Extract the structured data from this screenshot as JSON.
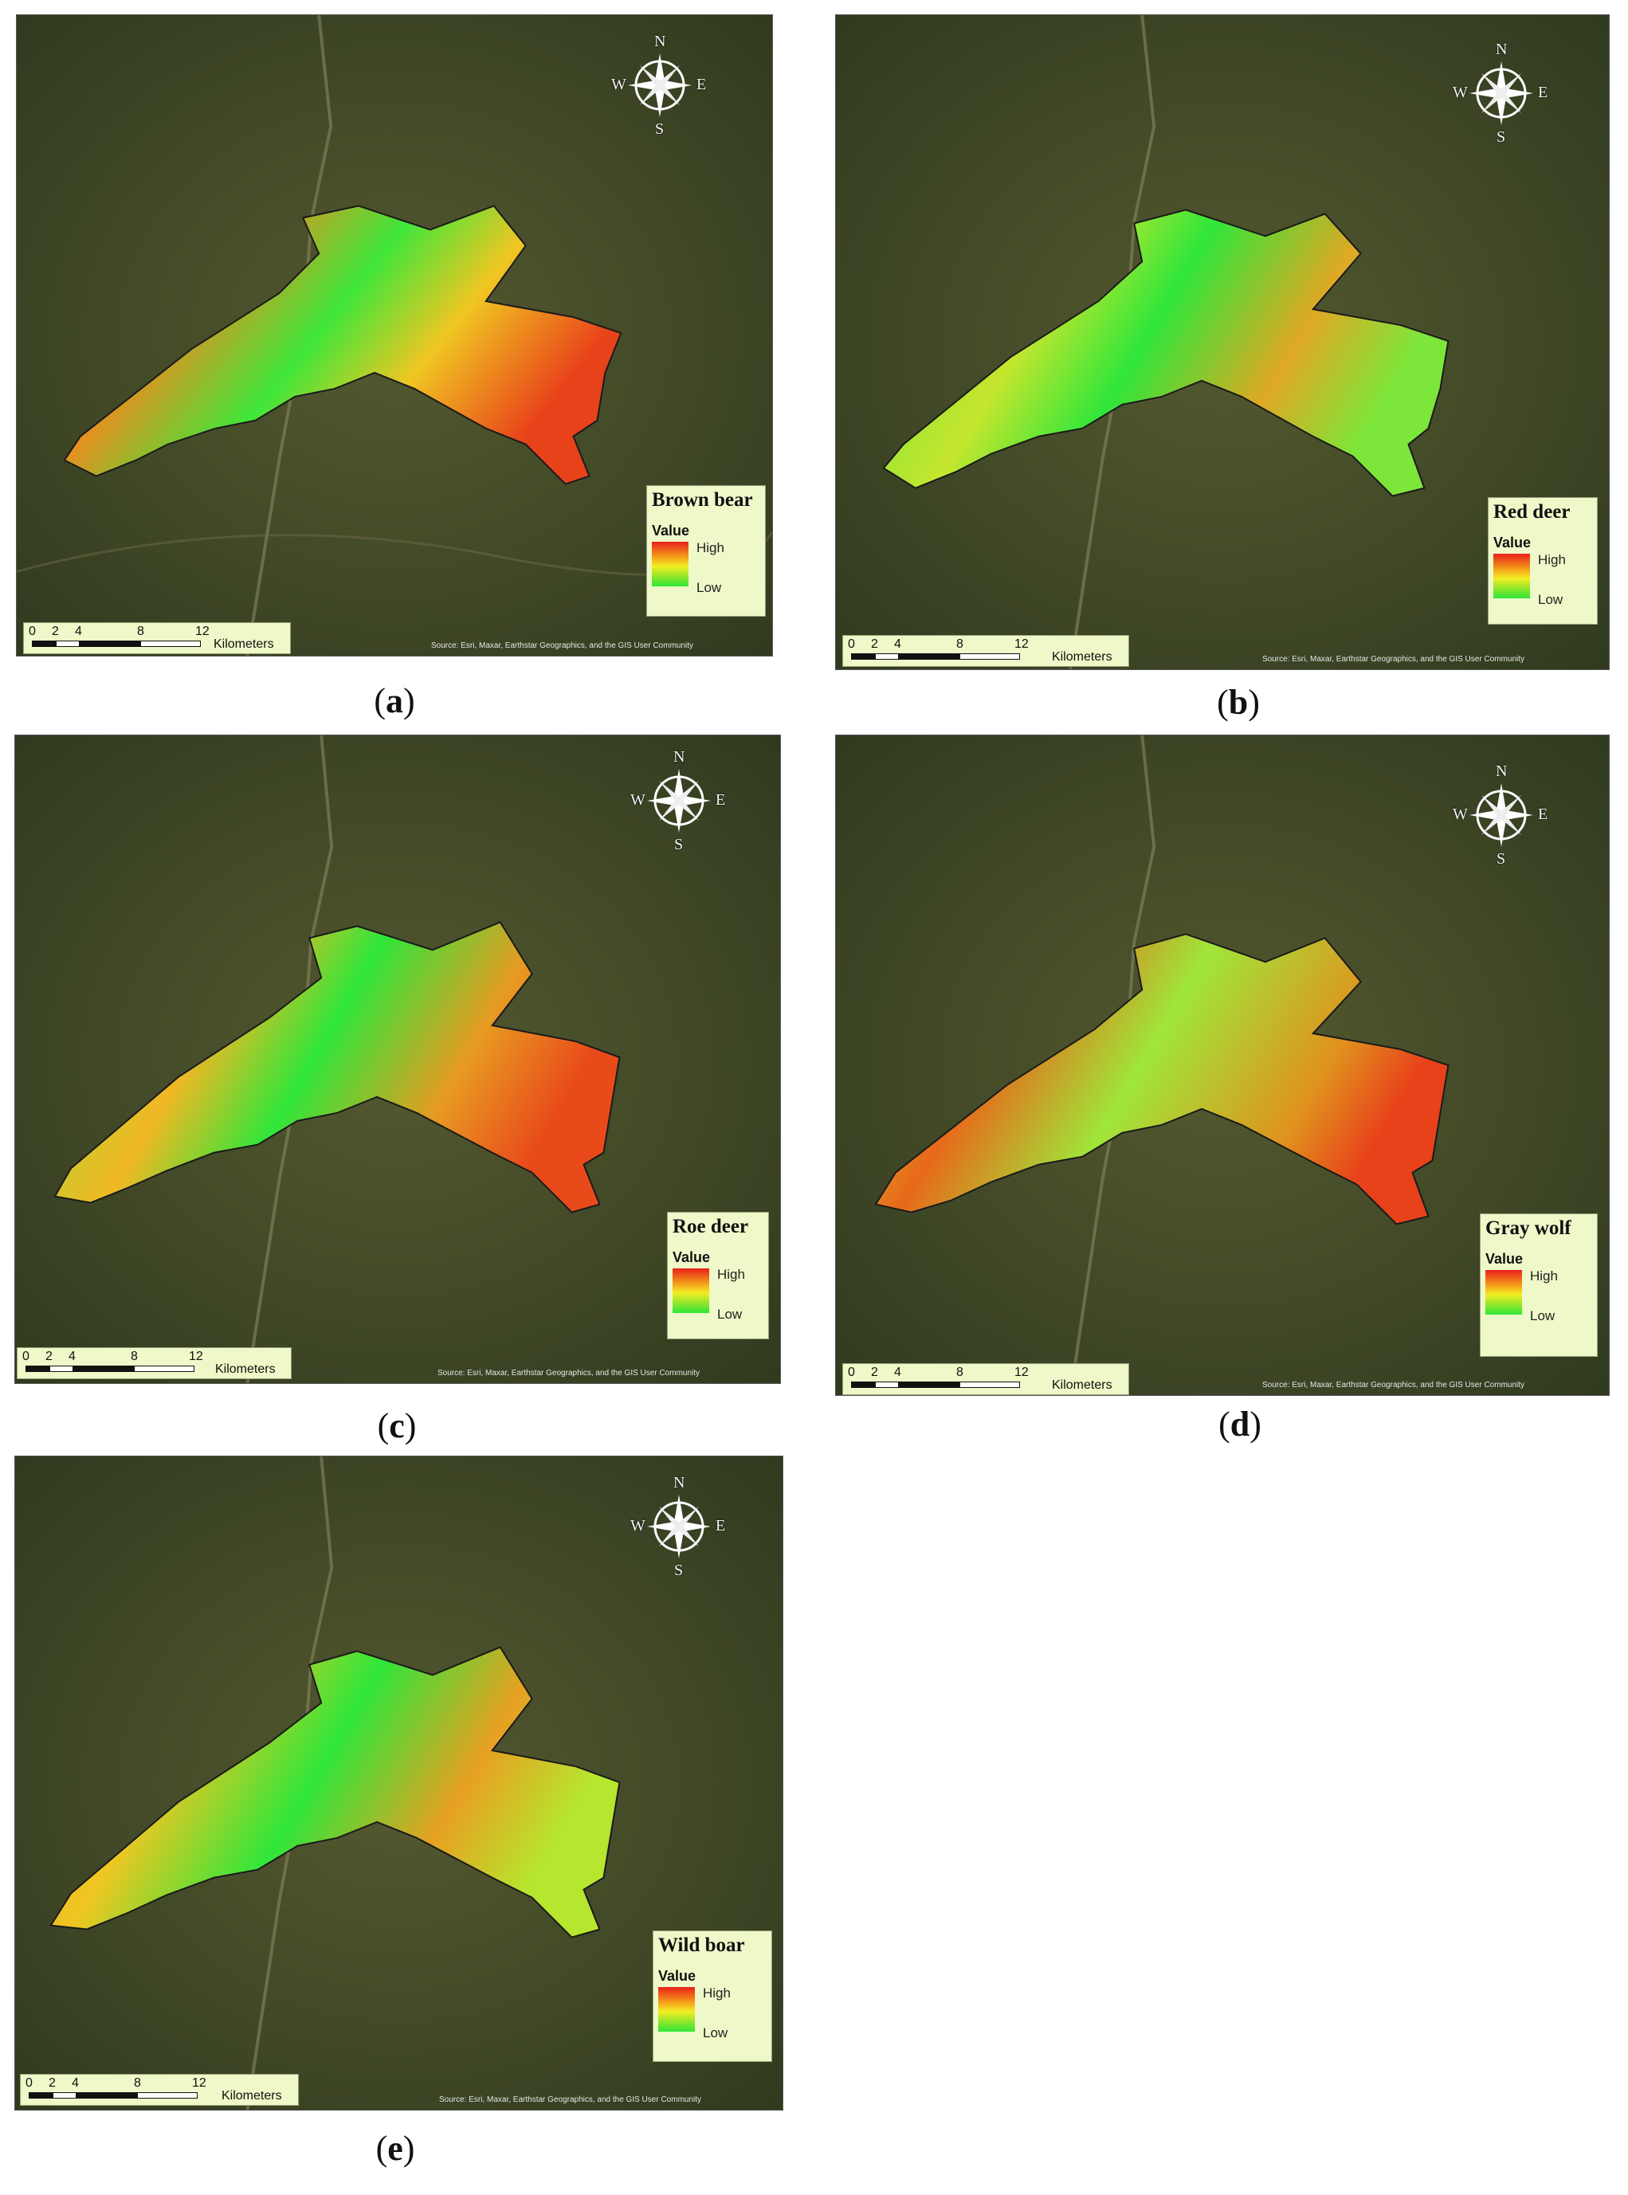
{
  "compass": {
    "n": "N",
    "s": "S",
    "e": "E",
    "w": "W"
  },
  "legend_value_label": "Value",
  "legend_high": "High",
  "legend_low": "Low",
  "scale": {
    "ticks": [
      "0",
      "2",
      "4",
      "8",
      "12"
    ],
    "unit": "Kilometers"
  },
  "attribution": "Source: Esri, Maxar, Earthstar Geographics, and the GIS User Community",
  "panels": [
    {
      "id": "a",
      "caption": "a",
      "species": "Brown bear"
    },
    {
      "id": "b",
      "caption": "b",
      "species": "Red deer"
    },
    {
      "id": "c",
      "caption": "c",
      "species": "Roe deer"
    },
    {
      "id": "d",
      "caption": "d",
      "species": "Gray wolf"
    },
    {
      "id": "e",
      "caption": "e",
      "species": "Wild boar"
    }
  ],
  "colors": {
    "high": "#e8201a",
    "mid": "#f2ee24",
    "low": "#2fe63a",
    "terrain": "#3e4a24"
  }
}
